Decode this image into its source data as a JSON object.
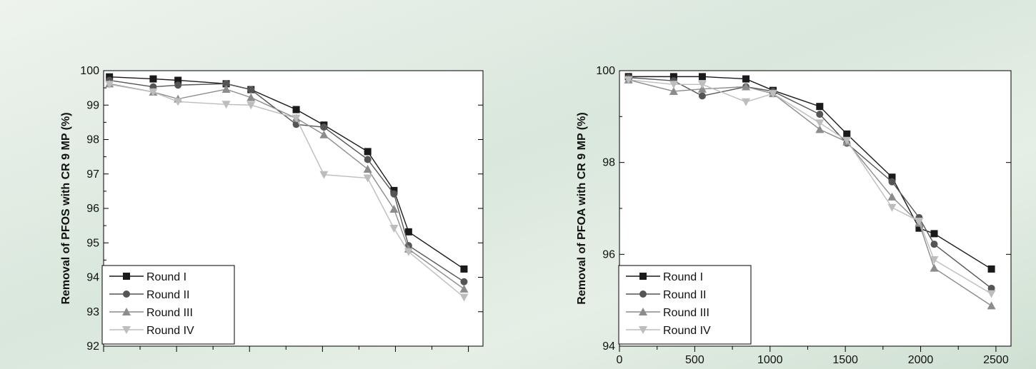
{
  "chart_data": [
    {
      "type": "line",
      "xlabel": "",
      "ylabel": "Removal of PFOS with CR 9 MP (%)",
      "ylim": [
        92,
        100
      ],
      "yticks": [
        "92",
        "93",
        "94",
        "95",
        "96",
        "97",
        "98",
        "99",
        "100"
      ],
      "xlim": [
        0,
        2600
      ],
      "x_tick_labels_visible": false,
      "legend": "bottom-left",
      "x": [
        40,
        340,
        510,
        840,
        1010,
        1320,
        1510,
        1810,
        1990,
        2090,
        2470
      ],
      "series": [
        {
          "name": "Round I",
          "marker": "square",
          "color": "#1a1a1a",
          "values": [
            99.82,
            99.76,
            99.72,
            99.62,
            99.45,
            98.87,
            98.42,
            97.65,
            96.52,
            95.32,
            94.24
          ]
        },
        {
          "name": "Round II",
          "marker": "circle",
          "color": "#555555",
          "values": [
            99.72,
            99.53,
            99.58,
            99.62,
            99.45,
            98.44,
            98.36,
            97.42,
            96.42,
            94.92,
            93.87
          ]
        },
        {
          "name": "Round III",
          "marker": "triangle-up",
          "color": "#8c8c8c",
          "values": [
            99.62,
            99.38,
            99.18,
            99.46,
            99.22,
            98.62,
            98.14,
            97.14,
            95.98,
            94.82,
            93.66
          ]
        },
        {
          "name": "Round IV",
          "marker": "triangle-down",
          "color": "#bdbdbd",
          "values": [
            99.6,
            99.38,
            99.1,
            99.02,
            99.0,
            98.62,
            96.98,
            96.88,
            95.42,
            94.74,
            93.42
          ]
        }
      ]
    },
    {
      "type": "line",
      "xlabel": "",
      "ylabel": "Removal of PFOA with CR 9 MP (%)",
      "ylim": [
        94,
        100
      ],
      "yticks": [
        "94",
        "96",
        "98",
        "100"
      ],
      "xlim": [
        0,
        2600
      ],
      "xticks": [
        "0",
        "500",
        "1000",
        "1500",
        "2000",
        "2500"
      ],
      "legend": "bottom-left",
      "x": [
        60,
        360,
        550,
        840,
        1020,
        1330,
        1510,
        1810,
        1990,
        2090,
        2470
      ],
      "series": [
        {
          "name": "Round I",
          "marker": "square",
          "color": "#1a1a1a",
          "values": [
            99.87,
            99.87,
            99.87,
            99.82,
            99.57,
            99.22,
            98.62,
            97.68,
            96.57,
            96.45,
            95.68
          ]
        },
        {
          "name": "Round II",
          "marker": "circle",
          "color": "#555555",
          "values": [
            99.85,
            99.78,
            99.45,
            99.65,
            99.55,
            99.05,
            98.42,
            97.58,
            96.8,
            96.22,
            95.26
          ]
        },
        {
          "name": "Round III",
          "marker": "triangle-up",
          "color": "#8c8c8c",
          "values": [
            99.8,
            99.55,
            99.6,
            99.65,
            99.5,
            98.72,
            98.45,
            97.25,
            96.68,
            95.7,
            94.88
          ]
        },
        {
          "name": "Round IV",
          "marker": "triangle-down",
          "color": "#bdbdbd",
          "values": [
            99.8,
            99.7,
            99.7,
            99.32,
            99.5,
            98.86,
            98.48,
            97.02,
            96.72,
            95.88,
            95.14
          ]
        }
      ]
    }
  ]
}
